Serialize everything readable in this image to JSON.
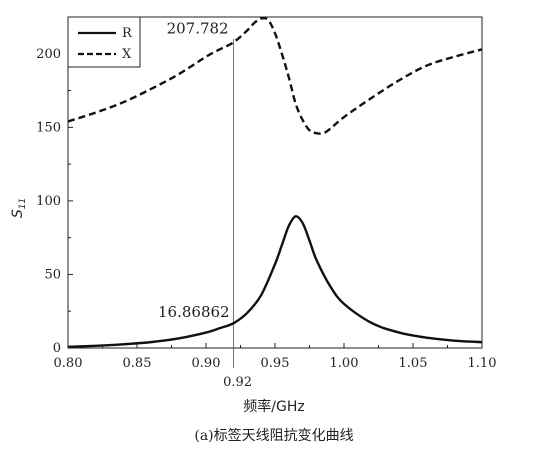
{
  "chart_data": {
    "type": "line",
    "xlabel": "频率/GHz",
    "ylabel": "S",
    "ylabel_sub": "11",
    "caption": "(a)标签天线阻抗变化曲线",
    "xlim": [
      0.8,
      1.1
    ],
    "ylim": [
      0,
      225
    ],
    "x_ticks": [
      "0.80",
      "0.85",
      "0.90",
      "0.95",
      "1.00",
      "1.05",
      "1.10"
    ],
    "x_tick_values": [
      0.8,
      0.85,
      0.9,
      0.95,
      1.0,
      1.05,
      1.1
    ],
    "y_ticks": [
      "0",
      "50",
      "100",
      "150",
      "200"
    ],
    "y_tick_values": [
      0,
      50,
      100,
      150,
      200
    ],
    "marker": {
      "x": 0.92,
      "label": "0.92"
    },
    "annotations": [
      {
        "text": "207.782",
        "series": "X",
        "x": 0.92,
        "y": 207.782
      },
      {
        "text": "16.86862",
        "series": "R",
        "x": 0.92,
        "y": 16.86862
      }
    ],
    "legend": {
      "position": "top-left",
      "entries": [
        "R",
        "X"
      ]
    },
    "series": [
      {
        "name": "R",
        "style": "solid",
        "x": [
          0.8,
          0.82,
          0.84,
          0.86,
          0.88,
          0.9,
          0.91,
          0.92,
          0.93,
          0.94,
          0.95,
          0.955,
          0.96,
          0.965,
          0.97,
          0.975,
          0.98,
          0.99,
          1.0,
          1.02,
          1.04,
          1.06,
          1.08,
          1.1
        ],
        "values": [
          0.8,
          1.5,
          2.5,
          4,
          6.5,
          10.5,
          13.5,
          16.9,
          24,
          36,
          57,
          70,
          83,
          89.5,
          85,
          73,
          60,
          42,
          30,
          17,
          10.5,
          7,
          5,
          4
        ]
      },
      {
        "name": "X",
        "style": "dashed",
        "x": [
          0.8,
          0.82,
          0.84,
          0.86,
          0.88,
          0.9,
          0.91,
          0.92,
          0.93,
          0.935,
          0.94,
          0.945,
          0.95,
          0.955,
          0.96,
          0.965,
          0.97,
          0.975,
          0.98,
          0.985,
          0.99,
          1.0,
          1.02,
          1.04,
          1.06,
          1.08,
          1.1
        ],
        "values": [
          154,
          160,
          167,
          176,
          186,
          198,
          203,
          207.8,
          216,
          221,
          224,
          223,
          214,
          200,
          184,
          166,
          155,
          148,
          146,
          146,
          149,
          157,
          170,
          182,
          192,
          198,
          203
        ]
      }
    ]
  }
}
